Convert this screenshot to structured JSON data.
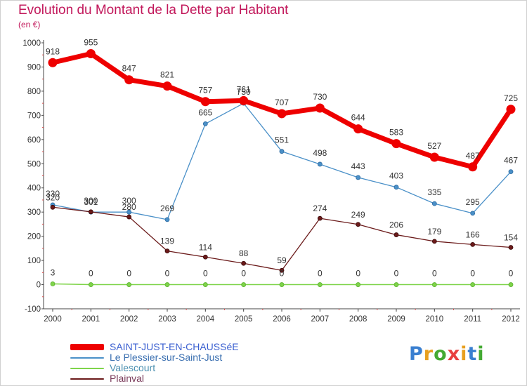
{
  "chart_data": {
    "type": "line",
    "title": "Evolution du Montant de la Dette par Habitant",
    "subtitle": "(en €)",
    "x": [
      2000,
      2001,
      2002,
      2003,
      2004,
      2005,
      2006,
      2007,
      2008,
      2009,
      2010,
      2011,
      2012
    ],
    "ylim": [
      -100,
      1000
    ],
    "yticks": [
      -100,
      0,
      100,
      200,
      300,
      400,
      500,
      600,
      700,
      800,
      900,
      1000
    ],
    "grid": false,
    "legend_position": "bottom-left",
    "series": [
      {
        "name": "SAINT-JUST-EN-CHAUSSéE",
        "color": "#ee0000",
        "values": [
          918,
          955,
          847,
          821,
          757,
          761,
          707,
          730,
          644,
          583,
          527,
          487,
          725
        ]
      },
      {
        "name": "Le Plessier-sur-Saint-Just",
        "color": "#4a90c8",
        "values": [
          330,
          300,
          300,
          269,
          665,
          750,
          551,
          498,
          443,
          403,
          335,
          295,
          467
        ]
      },
      {
        "name": "Valescourt",
        "color": "#7fd44a",
        "values": [
          3,
          0,
          0,
          0,
          0,
          0,
          0,
          0,
          0,
          0,
          0,
          0,
          0
        ]
      },
      {
        "name": "Plainval",
        "color": "#6b1a1a",
        "values": [
          320,
          301,
          280,
          139,
          114,
          88,
          59,
          274,
          249,
          206,
          179,
          166,
          154
        ]
      }
    ],
    "data_labels": [
      [
        "918",
        "955",
        "847",
        "821",
        "757",
        "761",
        "707",
        "730",
        "644",
        "583",
        "527",
        "487",
        "725"
      ],
      [
        "330",
        "300",
        "300",
        "269",
        "665",
        "750",
        "551",
        "498",
        "443",
        "403",
        "335",
        "295",
        "467"
      ],
      [
        "3",
        "0",
        "0",
        "0",
        "0",
        "0",
        "0",
        "0",
        "0",
        "0",
        "0",
        "0",
        "0"
      ],
      [
        "320",
        "301",
        "280",
        "139",
        "114",
        "88",
        "59",
        "274",
        "249",
        "206",
        "179",
        "166",
        "154"
      ]
    ]
  },
  "logo": {
    "letters": [
      "P",
      "r",
      "o",
      "x",
      "i",
      "t",
      "i"
    ],
    "colors": [
      "#3a7fd0",
      "#e8a020",
      "#44aa33",
      "#e84040",
      "#e8a020",
      "#3a7fd0",
      "#44aa33"
    ]
  },
  "colors": {
    "title": "#c2185b",
    "axis": "#444444",
    "tick_mark": "#e05050"
  }
}
